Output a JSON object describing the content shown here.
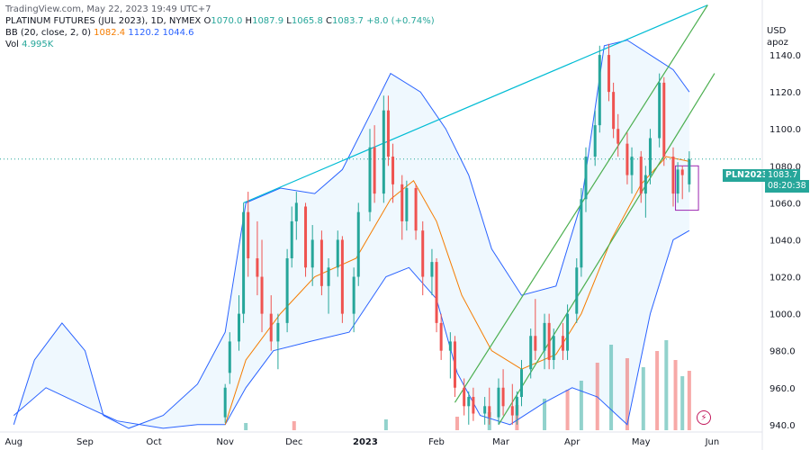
{
  "watermark": "TradingView.com, May 22, 2023 19:49 UTC+7",
  "legend": {
    "symbol": "PLATINUM FUTURES (JUL 2023), 1D, NYMEX",
    "ohlc": [
      {
        "key": "O",
        "value": "1070.0"
      },
      {
        "key": "H",
        "value": "1087.9"
      },
      {
        "key": "L",
        "value": "1065.8"
      },
      {
        "key": "C",
        "value": "1083.7"
      }
    ],
    "change": "+8.0 (+0.74%)",
    "bb_label": "BB (20, close, 2, 0)",
    "bb_values": [
      "1082.4",
      "1120.2",
      "1044.6"
    ],
    "vol_label": "Vol",
    "vol_value": "4.995K"
  },
  "price_axis": {
    "currency": "USD",
    "unit": "apoz"
  },
  "tags": {
    "symbol": "PLN2023",
    "price": "1083.7",
    "timer": "08:20:38"
  },
  "colors": {
    "up": "#26a69a",
    "down": "#ef5350",
    "bb_upper_lower": "#2962ff",
    "bb_basis": "#f57c00",
    "trend_top": "#00bcd4",
    "channel": "#4caf50",
    "box": "#9c27b0"
  },
  "chart_data": {
    "type": "candlestick",
    "y_ticks": [
      940,
      960,
      980,
      1000,
      1020,
      1040,
      1060,
      1080,
      1100,
      1120,
      1140
    ],
    "y_tick_labels": [
      "940.0",
      "960.0",
      "980.0",
      "1000.0",
      "1020.0",
      "1040.0",
      "1060.0",
      "1080.0",
      "1100.0",
      "1120.0",
      "1140.0"
    ],
    "ylim": [
      937,
      1160
    ],
    "x_labels": [
      {
        "label": "Aug",
        "date": "2022-08-01"
      },
      {
        "label": "Sep",
        "date": "2022-09-01"
      },
      {
        "label": "Oct",
        "date": "2022-10-01"
      },
      {
        "label": "Nov",
        "date": "2022-11-01"
      },
      {
        "label": "Dec",
        "date": "2022-12-01"
      },
      {
        "label": "2023",
        "date": "2023-01-01",
        "bold": true
      },
      {
        "label": "Feb",
        "date": "2023-02-01"
      },
      {
        "label": "Mar",
        "date": "2023-03-01"
      },
      {
        "label": "Apr",
        "date": "2023-04-01"
      },
      {
        "label": "May",
        "date": "2023-05-01"
      },
      {
        "label": "Jun",
        "date": "2023-06-01"
      }
    ],
    "xlim": [
      "2022-07-26",
      "2023-06-22"
    ],
    "last_price": 1083.7,
    "candles": [
      {
        "date": "2022-11-01",
        "open": 944,
        "high": 962,
        "low": 941,
        "close": 960
      },
      {
        "date": "2022-11-03",
        "open": 968,
        "high": 990,
        "low": 962,
        "close": 985
      },
      {
        "date": "2022-11-07",
        "open": 985,
        "high": 1010,
        "low": 980,
        "close": 1000
      },
      {
        "date": "2022-11-09",
        "open": 1000,
        "high": 1060,
        "low": 995,
        "close": 1055
      },
      {
        "date": "2022-11-11",
        "open": 1055,
        "high": 1066,
        "low": 1020,
        "close": 1030
      },
      {
        "date": "2022-11-15",
        "open": 1030,
        "high": 1050,
        "low": 1010,
        "close": 1020
      },
      {
        "date": "2022-11-17",
        "open": 1020,
        "high": 1040,
        "low": 990,
        "close": 1000
      },
      {
        "date": "2022-11-21",
        "open": 1000,
        "high": 1010,
        "low": 980,
        "close": 985
      },
      {
        "date": "2022-11-24",
        "open": 985,
        "high": 1000,
        "low": 970,
        "close": 995
      },
      {
        "date": "2022-11-28",
        "open": 995,
        "high": 1035,
        "low": 990,
        "close": 1030
      },
      {
        "date": "2022-11-30",
        "open": 1030,
        "high": 1058,
        "low": 1025,
        "close": 1050
      },
      {
        "date": "2022-12-02",
        "open": 1050,
        "high": 1066,
        "low": 1040,
        "close": 1060
      },
      {
        "date": "2022-12-06",
        "open": 1058,
        "high": 1060,
        "low": 1020,
        "close": 1025
      },
      {
        "date": "2022-12-09",
        "open": 1025,
        "high": 1048,
        "low": 1015,
        "close": 1040
      },
      {
        "date": "2022-12-13",
        "open": 1040,
        "high": 1045,
        "low": 1010,
        "close": 1015
      },
      {
        "date": "2022-12-16",
        "open": 1015,
        "high": 1030,
        "low": 1000,
        "close": 1025
      },
      {
        "date": "2022-12-20",
        "open": 1025,
        "high": 1045,
        "low": 1020,
        "close": 1040
      },
      {
        "date": "2022-12-22",
        "open": 1040,
        "high": 1042,
        "low": 995,
        "close": 1000
      },
      {
        "date": "2022-12-27",
        "open": 1000,
        "high": 1025,
        "low": 990,
        "close": 1020
      },
      {
        "date": "2022-12-29",
        "open": 1020,
        "high": 1060,
        "low": 1015,
        "close": 1055
      },
      {
        "date": "2023-01-03",
        "open": 1055,
        "high": 1100,
        "low": 1050,
        "close": 1090
      },
      {
        "date": "2023-01-05",
        "open": 1090,
        "high": 1102,
        "low": 1060,
        "close": 1065
      },
      {
        "date": "2023-01-09",
        "open": 1065,
        "high": 1118,
        "low": 1060,
        "close": 1110
      },
      {
        "date": "2023-01-11",
        "open": 1110,
        "high": 1118,
        "low": 1080,
        "close": 1085
      },
      {
        "date": "2023-01-13",
        "open": 1085,
        "high": 1092,
        "low": 1060,
        "close": 1070
      },
      {
        "date": "2023-01-17",
        "open": 1070,
        "high": 1075,
        "low": 1040,
        "close": 1050
      },
      {
        "date": "2023-01-19",
        "open": 1050,
        "high": 1072,
        "low": 1045,
        "close": 1068
      },
      {
        "date": "2023-01-23",
        "open": 1068,
        "high": 1070,
        "low": 1040,
        "close": 1045
      },
      {
        "date": "2023-01-26",
        "open": 1045,
        "high": 1050,
        "low": 1010,
        "close": 1020
      },
      {
        "date": "2023-01-30",
        "open": 1020,
        "high": 1035,
        "low": 1010,
        "close": 1028
      },
      {
        "date": "2023-02-01",
        "open": 1028,
        "high": 1030,
        "low": 990,
        "close": 995
      },
      {
        "date": "2023-02-03",
        "open": 995,
        "high": 1000,
        "low": 975,
        "close": 980
      },
      {
        "date": "2023-02-07",
        "open": 980,
        "high": 990,
        "low": 965,
        "close": 985
      },
      {
        "date": "2023-02-09",
        "open": 985,
        "high": 988,
        "low": 955,
        "close": 960
      },
      {
        "date": "2023-02-13",
        "open": 960,
        "high": 965,
        "low": 945,
        "close": 950
      },
      {
        "date": "2023-02-15",
        "open": 950,
        "high": 958,
        "low": 940,
        "close": 955
      },
      {
        "date": "2023-02-17",
        "open": 955,
        "high": 960,
        "low": 942,
        "close": 946
      },
      {
        "date": "2023-02-22",
        "open": 946,
        "high": 955,
        "low": 940,
        "close": 950
      },
      {
        "date": "2023-02-24",
        "open": 950,
        "high": 960,
        "low": 940,
        "close": 944
      },
      {
        "date": "2023-02-28",
        "open": 944,
        "high": 965,
        "low": 940,
        "close": 960
      },
      {
        "date": "2023-03-02",
        "open": 960,
        "high": 970,
        "low": 945,
        "close": 950
      },
      {
        "date": "2023-03-06",
        "open": 950,
        "high": 962,
        "low": 940,
        "close": 945
      },
      {
        "date": "2023-03-08",
        "open": 945,
        "high": 958,
        "low": 940,
        "close": 955
      },
      {
        "date": "2023-03-10",
        "open": 955,
        "high": 975,
        "low": 950,
        "close": 970
      },
      {
        "date": "2023-03-14",
        "open": 970,
        "high": 992,
        "low": 965,
        "close": 988
      },
      {
        "date": "2023-03-16",
        "open": 988,
        "high": 1008,
        "low": 975,
        "close": 980
      },
      {
        "date": "2023-03-20",
        "open": 980,
        "high": 1000,
        "low": 970,
        "close": 995
      },
      {
        "date": "2023-03-22",
        "open": 995,
        "high": 1000,
        "low": 970,
        "close": 975
      },
      {
        "date": "2023-03-24",
        "open": 975,
        "high": 992,
        "low": 970,
        "close": 988
      },
      {
        "date": "2023-03-28",
        "open": 988,
        "high": 995,
        "low": 975,
        "close": 980
      },
      {
        "date": "2023-03-30",
        "open": 980,
        "high": 1005,
        "low": 975,
        "close": 1000
      },
      {
        "date": "2023-04-03",
        "open": 1000,
        "high": 1030,
        "low": 995,
        "close": 1025
      },
      {
        "date": "2023-04-05",
        "open": 1025,
        "high": 1068,
        "low": 1020,
        "close": 1062
      },
      {
        "date": "2023-04-07",
        "open": 1062,
        "high": 1090,
        "low": 1055,
        "close": 1085
      },
      {
        "date": "2023-04-11",
        "open": 1085,
        "high": 1110,
        "low": 1080,
        "close": 1102
      },
      {
        "date": "2023-04-13",
        "open": 1102,
        "high": 1145,
        "low": 1098,
        "close": 1140
      },
      {
        "date": "2023-04-17",
        "open": 1140,
        "high": 1146,
        "low": 1115,
        "close": 1120
      },
      {
        "date": "2023-04-19",
        "open": 1120,
        "high": 1125,
        "low": 1095,
        "close": 1100
      },
      {
        "date": "2023-04-21",
        "open": 1100,
        "high": 1108,
        "low": 1085,
        "close": 1092
      },
      {
        "date": "2023-04-25",
        "open": 1092,
        "high": 1098,
        "low": 1070,
        "close": 1075
      },
      {
        "date": "2023-04-27",
        "open": 1075,
        "high": 1090,
        "low": 1065,
        "close": 1085
      },
      {
        "date": "2023-05-01",
        "open": 1085,
        "high": 1088,
        "low": 1060,
        "close": 1065
      },
      {
        "date": "2023-05-03",
        "open": 1065,
        "high": 1080,
        "low": 1052,
        "close": 1075
      },
      {
        "date": "2023-05-05",
        "open": 1075,
        "high": 1100,
        "low": 1070,
        "close": 1095
      },
      {
        "date": "2023-05-09",
        "open": 1095,
        "high": 1130,
        "low": 1090,
        "close": 1125
      },
      {
        "date": "2023-05-11",
        "open": 1125,
        "high": 1128,
        "low": 1080,
        "close": 1085
      },
      {
        "date": "2023-05-15",
        "open": 1085,
        "high": 1090,
        "low": 1058,
        "close": 1065
      },
      {
        "date": "2023-05-17",
        "open": 1065,
        "high": 1082,
        "low": 1060,
        "close": 1078
      },
      {
        "date": "2023-05-19",
        "open": 1078,
        "high": 1080,
        "low": 1062,
        "close": 1075
      },
      {
        "date": "2023-05-22",
        "open": 1070,
        "high": 1087.9,
        "low": 1065.8,
        "close": 1083.7
      }
    ],
    "bb_upper": [
      {
        "date": "2022-08-01",
        "value": 940
      },
      {
        "date": "2022-08-10",
        "value": 975
      },
      {
        "date": "2022-08-22",
        "value": 995
      },
      {
        "date": "2022-09-01",
        "value": 980
      },
      {
        "date": "2022-09-09",
        "value": 945
      },
      {
        "date": "2022-09-20",
        "value": 938
      },
      {
        "date": "2022-10-05",
        "value": 945
      },
      {
        "date": "2022-10-20",
        "value": 962
      },
      {
        "date": "2022-11-01",
        "value": 990
      },
      {
        "date": "2022-11-10",
        "value": 1060
      },
      {
        "date": "2022-11-25",
        "value": 1068
      },
      {
        "date": "2022-12-10",
        "value": 1065
      },
      {
        "date": "2022-12-22",
        "value": 1078
      },
      {
        "date": "2023-01-04",
        "value": 1110
      },
      {
        "date": "2023-01-12",
        "value": 1130
      },
      {
        "date": "2023-01-25",
        "value": 1120
      },
      {
        "date": "2023-02-05",
        "value": 1100
      },
      {
        "date": "2023-02-15",
        "value": 1075
      },
      {
        "date": "2023-02-25",
        "value": 1035
      },
      {
        "date": "2023-03-10",
        "value": 1010
      },
      {
        "date": "2023-03-25",
        "value": 1015
      },
      {
        "date": "2023-04-05",
        "value": 1060
      },
      {
        "date": "2023-04-15",
        "value": 1145
      },
      {
        "date": "2023-04-25",
        "value": 1148
      },
      {
        "date": "2023-05-05",
        "value": 1140
      },
      {
        "date": "2023-05-15",
        "value": 1132
      },
      {
        "date": "2023-05-22",
        "value": 1120
      }
    ],
    "bb_lower": [
      {
        "date": "2022-08-01",
        "value": 945
      },
      {
        "date": "2022-08-15",
        "value": 960
      },
      {
        "date": "2022-09-01",
        "value": 950
      },
      {
        "date": "2022-09-15",
        "value": 942
      },
      {
        "date": "2022-10-05",
        "value": 938
      },
      {
        "date": "2022-10-20",
        "value": 940
      },
      {
        "date": "2022-11-01",
        "value": 940
      },
      {
        "date": "2022-11-10",
        "value": 960
      },
      {
        "date": "2022-11-22",
        "value": 980
      },
      {
        "date": "2022-12-08",
        "value": 985
      },
      {
        "date": "2022-12-25",
        "value": 990
      },
      {
        "date": "2023-01-10",
        "value": 1020
      },
      {
        "date": "2023-01-20",
        "value": 1025
      },
      {
        "date": "2023-02-01",
        "value": 1008
      },
      {
        "date": "2023-02-10",
        "value": 968
      },
      {
        "date": "2023-02-20",
        "value": 945
      },
      {
        "date": "2023-03-05",
        "value": 940
      },
      {
        "date": "2023-03-20",
        "value": 952
      },
      {
        "date": "2023-04-01",
        "value": 960
      },
      {
        "date": "2023-04-12",
        "value": 955
      },
      {
        "date": "2023-04-25",
        "value": 940
      },
      {
        "date": "2023-05-05",
        "value": 1000
      },
      {
        "date": "2023-05-15",
        "value": 1040
      },
      {
        "date": "2023-05-22",
        "value": 1045
      }
    ],
    "bb_basis": [
      {
        "date": "2022-11-01",
        "value": 940
      },
      {
        "date": "2022-11-10",
        "value": 975
      },
      {
        "date": "2022-11-25",
        "value": 1000
      },
      {
        "date": "2022-12-10",
        "value": 1020
      },
      {
        "date": "2022-12-28",
        "value": 1030
      },
      {
        "date": "2023-01-12",
        "value": 1062
      },
      {
        "date": "2023-01-22",
        "value": 1072
      },
      {
        "date": "2023-02-01",
        "value": 1050
      },
      {
        "date": "2023-02-12",
        "value": 1010
      },
      {
        "date": "2023-02-25",
        "value": 980
      },
      {
        "date": "2023-03-10",
        "value": 970
      },
      {
        "date": "2023-03-25",
        "value": 978
      },
      {
        "date": "2023-04-05",
        "value": 1000
      },
      {
        "date": "2023-04-18",
        "value": 1040
      },
      {
        "date": "2023-05-01",
        "value": 1070
      },
      {
        "date": "2023-05-12",
        "value": 1085
      },
      {
        "date": "2023-05-22",
        "value": 1082.4
      }
    ],
    "volume": [
      {
        "date": "2022-11-10",
        "value": 8
      },
      {
        "date": "2022-12-01",
        "value": 10
      },
      {
        "date": "2023-01-10",
        "value": 12
      },
      {
        "date": "2023-02-10",
        "value": 15
      },
      {
        "date": "2023-02-24",
        "value": 20
      },
      {
        "date": "2023-03-08",
        "value": 28
      },
      {
        "date": "2023-03-20",
        "value": 35
      },
      {
        "date": "2023-03-30",
        "value": 45
      },
      {
        "date": "2023-04-05",
        "value": 55
      },
      {
        "date": "2023-04-12",
        "value": 75
      },
      {
        "date": "2023-04-18",
        "value": 95
      },
      {
        "date": "2023-04-25",
        "value": 80
      },
      {
        "date": "2023-05-02",
        "value": 70
      },
      {
        "date": "2023-05-08",
        "value": 88
      },
      {
        "date": "2023-05-12",
        "value": 100
      },
      {
        "date": "2023-05-16",
        "value": 78
      },
      {
        "date": "2023-05-19",
        "value": 60
      },
      {
        "date": "2023-05-22",
        "value": 66
      }
    ],
    "trendlines": [
      {
        "kind": "resistance",
        "from": {
          "date": "2022-11-09",
          "value": 1060
        },
        "to": {
          "date": "2023-05-30",
          "value": 1167
        }
      },
      {
        "kind": "channel-upper",
        "from": {
          "date": "2023-02-09",
          "value": 952
        },
        "to": {
          "date": "2023-05-30",
          "value": 1167
        }
      },
      {
        "kind": "channel-lower",
        "from": {
          "date": "2023-02-28",
          "value": 940
        },
        "to": {
          "date": "2023-06-02",
          "value": 1130
        }
      }
    ],
    "box": {
      "from": {
        "date": "2023-05-16",
        "value": 1056
      },
      "to": {
        "date": "2023-05-26",
        "value": 1080
      }
    }
  }
}
